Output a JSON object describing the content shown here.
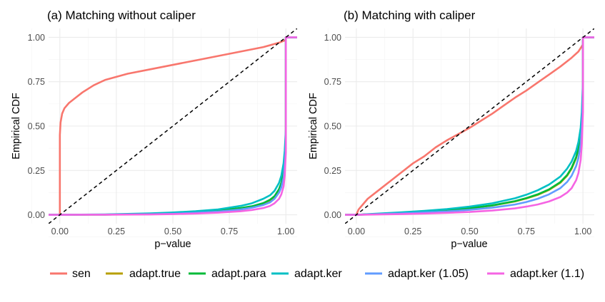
{
  "chart_data": [
    {
      "type": "line",
      "title": "(a) Matching without caliper",
      "xlabel": "p−value",
      "ylabel": "Empirical CDF",
      "xlim": [
        -0.05,
        1.05
      ],
      "ylim": [
        -0.05,
        1.05
      ],
      "x_ticks": [
        "0.00",
        "0.25",
        "0.50",
        "0.75",
        "1.00"
      ],
      "y_ticks": [
        "0.00",
        "0.25",
        "0.50",
        "0.75",
        "1.00"
      ],
      "reference_line": {
        "style": "dashed",
        "from": [
          0,
          0
        ],
        "to": [
          1,
          1
        ]
      },
      "series": [
        {
          "name": "sen",
          "x": [
            0,
            0,
            0.003,
            0.01,
            0.02,
            0.04,
            0.07,
            0.1,
            0.15,
            0.2,
            0.3,
            0.4,
            0.5,
            0.6,
            0.7,
            0.8,
            0.9,
            0.97,
            1.0,
            1.0,
            1.05
          ],
          "y": [
            0,
            0.45,
            0.52,
            0.57,
            0.6,
            0.63,
            0.66,
            0.69,
            0.73,
            0.76,
            0.795,
            0.82,
            0.845,
            0.87,
            0.895,
            0.92,
            0.945,
            0.97,
            0.985,
            1.0,
            1.0
          ]
        },
        {
          "name": "adapt.true",
          "x": [
            -0.05,
            0,
            0.2,
            0.4,
            0.5,
            0.6,
            0.7,
            0.8,
            0.85,
            0.9,
            0.93,
            0.95,
            0.97,
            0.98,
            0.99,
            0.995,
            1.0,
            1.0,
            1.05
          ],
          "y": [
            0,
            0,
            0.001,
            0.004,
            0.008,
            0.014,
            0.022,
            0.035,
            0.045,
            0.062,
            0.08,
            0.1,
            0.14,
            0.17,
            0.23,
            0.3,
            0.42,
            1.0,
            1.0
          ]
        },
        {
          "name": "adapt.para",
          "x": [
            -0.05,
            0,
            0.2,
            0.4,
            0.5,
            0.6,
            0.7,
            0.8,
            0.85,
            0.9,
            0.93,
            0.95,
            0.97,
            0.98,
            0.99,
            0.995,
            1.0,
            1.0,
            1.05
          ],
          "y": [
            0,
            0,
            0.001,
            0.004,
            0.009,
            0.015,
            0.024,
            0.038,
            0.048,
            0.066,
            0.085,
            0.105,
            0.145,
            0.18,
            0.24,
            0.31,
            0.43,
            1.0,
            1.0
          ]
        },
        {
          "name": "adapt.ker",
          "x": [
            -0.05,
            0,
            0.2,
            0.4,
            0.5,
            0.6,
            0.7,
            0.8,
            0.85,
            0.9,
            0.93,
            0.95,
            0.97,
            0.98,
            0.99,
            0.995,
            1.0,
            1.0,
            1.05
          ],
          "y": [
            0,
            0,
            0.002,
            0.008,
            0.013,
            0.02,
            0.03,
            0.05,
            0.065,
            0.09,
            0.11,
            0.135,
            0.18,
            0.22,
            0.29,
            0.36,
            0.48,
            1.0,
            1.0
          ]
        },
        {
          "name": "adapt.ker (1.05)",
          "x": [
            -0.05,
            0,
            0.2,
            0.4,
            0.5,
            0.6,
            0.7,
            0.8,
            0.85,
            0.9,
            0.93,
            0.95,
            0.97,
            0.98,
            0.99,
            0.995,
            1.0,
            1.0,
            1.05
          ],
          "y": [
            0,
            0,
            0.001,
            0.003,
            0.006,
            0.011,
            0.018,
            0.03,
            0.04,
            0.055,
            0.07,
            0.09,
            0.125,
            0.155,
            0.21,
            0.28,
            0.4,
            1.0,
            1.0
          ]
        },
        {
          "name": "adapt.ker (1.1)",
          "x": [
            -0.05,
            0,
            0.2,
            0.4,
            0.5,
            0.6,
            0.7,
            0.8,
            0.85,
            0.9,
            0.93,
            0.95,
            0.97,
            0.98,
            0.99,
            0.995,
            1.0,
            1.0,
            1.05
          ],
          "y": [
            0,
            0,
            0.0005,
            0.002,
            0.004,
            0.007,
            0.012,
            0.02,
            0.027,
            0.038,
            0.05,
            0.065,
            0.09,
            0.115,
            0.16,
            0.22,
            0.35,
            1.0,
            1.0
          ]
        }
      ]
    },
    {
      "type": "line",
      "title": "(b) Matching with caliper",
      "xlabel": "p−value",
      "ylabel": "Empirical CDF",
      "xlim": [
        -0.05,
        1.05
      ],
      "ylim": [
        -0.05,
        1.05
      ],
      "x_ticks": [
        "0.00",
        "0.25",
        "0.50",
        "0.75",
        "1.00"
      ],
      "y_ticks": [
        "0.00",
        "0.25",
        "0.50",
        "0.75",
        "1.00"
      ],
      "reference_line": {
        "style": "dashed",
        "from": [
          0,
          0
        ],
        "to": [
          1,
          1
        ]
      },
      "series": [
        {
          "name": "sen",
          "x": [
            -0.05,
            0,
            0.01,
            0.03,
            0.05,
            0.1,
            0.15,
            0.2,
            0.25,
            0.3,
            0.35,
            0.4,
            0.45,
            0.5,
            0.55,
            0.6,
            0.65,
            0.7,
            0.75,
            0.8,
            0.85,
            0.9,
            0.95,
            0.98,
            1.0,
            1.0,
            1.05
          ],
          "y": [
            0,
            0,
            0.03,
            0.06,
            0.09,
            0.14,
            0.19,
            0.24,
            0.29,
            0.33,
            0.38,
            0.42,
            0.455,
            0.49,
            0.53,
            0.57,
            0.615,
            0.66,
            0.7,
            0.745,
            0.79,
            0.835,
            0.885,
            0.92,
            0.96,
            1.0,
            1.0
          ]
        },
        {
          "name": "adapt.true",
          "x": [
            -0.05,
            0,
            0.1,
            0.2,
            0.3,
            0.4,
            0.5,
            0.6,
            0.7,
            0.75,
            0.8,
            0.85,
            0.9,
            0.93,
            0.95,
            0.97,
            0.98,
            0.99,
            0.995,
            1.0,
            1.0,
            1.05
          ],
          "y": [
            0,
            0,
            0.005,
            0.01,
            0.016,
            0.024,
            0.036,
            0.052,
            0.075,
            0.092,
            0.112,
            0.14,
            0.18,
            0.22,
            0.26,
            0.32,
            0.37,
            0.45,
            0.54,
            0.7,
            1.0,
            1.0
          ]
        },
        {
          "name": "adapt.para",
          "x": [
            -0.05,
            0,
            0.1,
            0.2,
            0.3,
            0.4,
            0.5,
            0.6,
            0.7,
            0.75,
            0.8,
            0.85,
            0.9,
            0.93,
            0.95,
            0.97,
            0.98,
            0.99,
            0.995,
            1.0,
            1.0,
            1.05
          ],
          "y": [
            0,
            0,
            0.005,
            0.011,
            0.017,
            0.025,
            0.037,
            0.053,
            0.077,
            0.094,
            0.115,
            0.143,
            0.184,
            0.224,
            0.265,
            0.325,
            0.375,
            0.455,
            0.545,
            0.71,
            1.0,
            1.0
          ]
        },
        {
          "name": "adapt.ker",
          "x": [
            -0.05,
            0,
            0.1,
            0.2,
            0.3,
            0.4,
            0.5,
            0.6,
            0.7,
            0.75,
            0.8,
            0.85,
            0.9,
            0.93,
            0.95,
            0.97,
            0.98,
            0.99,
            0.995,
            1.0,
            1.0,
            1.05
          ],
          "y": [
            0,
            0,
            0.007,
            0.014,
            0.022,
            0.032,
            0.046,
            0.065,
            0.093,
            0.113,
            0.138,
            0.17,
            0.215,
            0.26,
            0.3,
            0.36,
            0.41,
            0.49,
            0.58,
            0.75,
            1.0,
            1.0
          ]
        },
        {
          "name": "adapt.ker (1.05)",
          "x": [
            -0.05,
            0,
            0.1,
            0.2,
            0.3,
            0.4,
            0.5,
            0.6,
            0.7,
            0.75,
            0.8,
            0.85,
            0.9,
            0.93,
            0.95,
            0.97,
            0.98,
            0.99,
            0.995,
            1.0,
            1.0,
            1.05
          ],
          "y": [
            0,
            0,
            0.004,
            0.008,
            0.013,
            0.019,
            0.028,
            0.04,
            0.058,
            0.072,
            0.09,
            0.115,
            0.15,
            0.185,
            0.22,
            0.275,
            0.32,
            0.4,
            0.49,
            0.66,
            1.0,
            1.0
          ]
        },
        {
          "name": "adapt.ker (1.1)",
          "x": [
            -0.05,
            0,
            0.1,
            0.2,
            0.3,
            0.4,
            0.5,
            0.6,
            0.7,
            0.75,
            0.8,
            0.85,
            0.9,
            0.93,
            0.95,
            0.97,
            0.98,
            0.99,
            0.995,
            1.0,
            1.0,
            1.05
          ],
          "y": [
            0,
            0,
            0.002,
            0.004,
            0.007,
            0.011,
            0.016,
            0.024,
            0.036,
            0.046,
            0.058,
            0.075,
            0.1,
            0.125,
            0.15,
            0.195,
            0.235,
            0.31,
            0.4,
            0.58,
            1.0,
            1.0
          ]
        }
      ]
    }
  ],
  "legend": {
    "placement": "bottom",
    "items": [
      {
        "label": "sen",
        "color": "#F8766D"
      },
      {
        "label": "adapt.true",
        "color": "#B79F00"
      },
      {
        "label": "adapt.para",
        "color": "#00BA38"
      },
      {
        "label": "adapt.ker",
        "color": "#00BFC4"
      },
      {
        "label": "adapt.ker (1.05)",
        "color": "#619CFF"
      },
      {
        "label": "adapt.ker (1.1)",
        "color": "#F564E3"
      }
    ]
  }
}
